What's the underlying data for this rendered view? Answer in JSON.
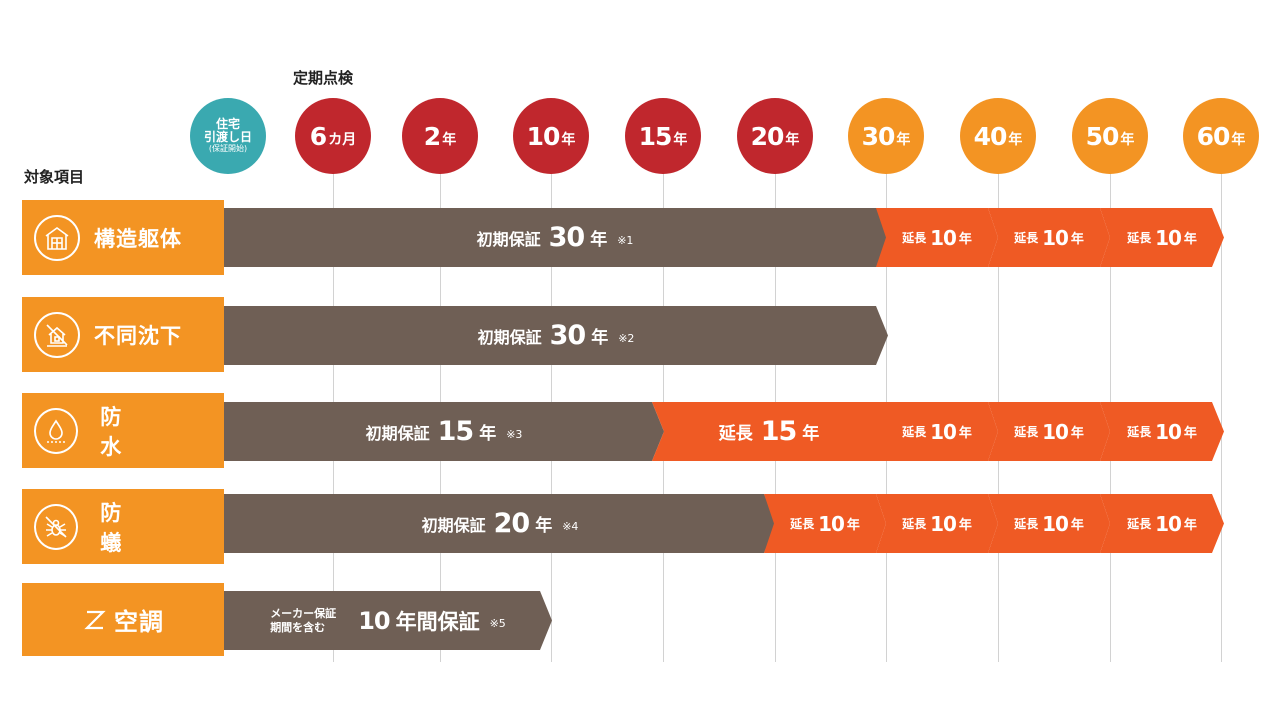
{
  "labels": {
    "inspection_header": "定期点検",
    "items_header": "対象項目"
  },
  "timeline": [
    {
      "type": "handover",
      "line1": "住宅",
      "line2": "引渡し日",
      "line3": "(保証開始)"
    },
    {
      "type": "inspection",
      "num": "6",
      "unit": "カ月"
    },
    {
      "type": "inspection",
      "num": "2",
      "unit": "年"
    },
    {
      "type": "inspection",
      "num": "10",
      "unit": "年"
    },
    {
      "type": "inspection",
      "num": "15",
      "unit": "年"
    },
    {
      "type": "inspection",
      "num": "20",
      "unit": "年"
    },
    {
      "type": "extension",
      "num": "30",
      "unit": "年"
    },
    {
      "type": "extension",
      "num": "40",
      "unit": "年"
    },
    {
      "type": "extension",
      "num": "50",
      "unit": "年"
    },
    {
      "type": "extension",
      "num": "60",
      "unit": "年"
    }
  ],
  "rows": [
    {
      "label": "構造躯体",
      "icon": "structure-icon",
      "initial": {
        "label": "初期保証",
        "num": "30",
        "unit": "年",
        "note": "※1"
      },
      "extensions": [
        {
          "label": "延長",
          "num": "10",
          "unit": "年"
        },
        {
          "label": "延長",
          "num": "10",
          "unit": "年"
        },
        {
          "label": "延長",
          "num": "10",
          "unit": "年"
        }
      ]
    },
    {
      "label": "不同沈下",
      "icon": "no-house-sinking-icon",
      "initial": {
        "label": "初期保証",
        "num": "30",
        "unit": "年",
        "note": "※2"
      },
      "extensions": []
    },
    {
      "label": "防　水",
      "icon": "water-drop-icon",
      "initial": {
        "label": "初期保証",
        "num": "15",
        "unit": "年",
        "note": "※3"
      },
      "mid_extension": {
        "label": "延長",
        "num": "15",
        "unit": "年"
      },
      "extensions": [
        {
          "label": "延長",
          "num": "10",
          "unit": "年"
        },
        {
          "label": "延長",
          "num": "10",
          "unit": "年"
        },
        {
          "label": "延長",
          "num": "10",
          "unit": "年"
        }
      ]
    },
    {
      "label": "防　蟻",
      "icon": "no-termite-icon",
      "initial": {
        "label": "初期保証",
        "num": "20",
        "unit": "年",
        "note": "※4"
      },
      "extensions": [
        {
          "label": "延長",
          "num": "10",
          "unit": "年"
        },
        {
          "label": "延長",
          "num": "10",
          "unit": "年"
        },
        {
          "label": "延長",
          "num": "10",
          "unit": "年"
        },
        {
          "label": "延長",
          "num": "10",
          "unit": "年"
        }
      ]
    },
    {
      "label": "空調",
      "icon": "aircon-icon",
      "initial": {
        "prefix1": "メーカー保証",
        "prefix2": "期間を含む",
        "num": "10",
        "unit": "年間保証",
        "note": "※5"
      },
      "extensions": []
    }
  ],
  "colors": {
    "handover": "#3aa9b0",
    "inspection": "#c0272d",
    "extension_circle": "#f39423",
    "item_box": "#f39423",
    "initial_bar": "#6f5f55",
    "extension_bar": "#ef5a24"
  }
}
